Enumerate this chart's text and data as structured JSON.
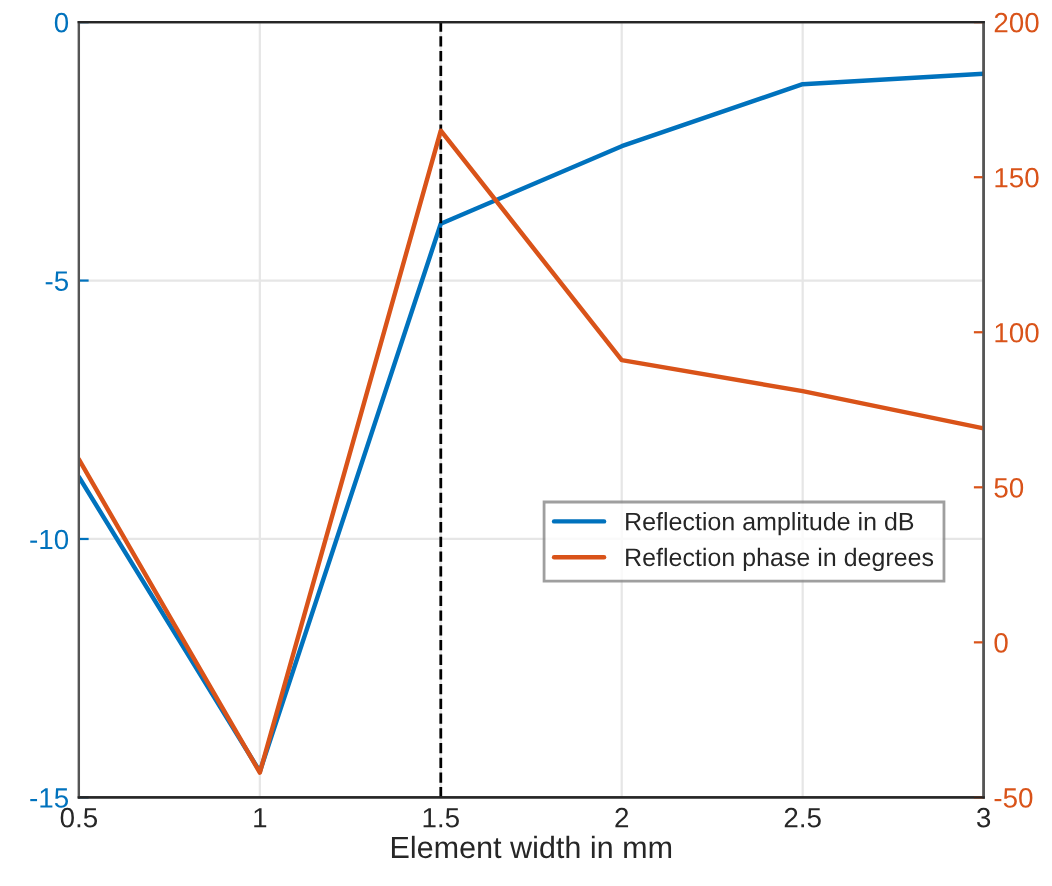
{
  "chart_data": {
    "type": "line",
    "xlabel": "Element width in mm",
    "x": [
      0.5,
      1,
      1.5,
      2,
      2.5,
      3
    ],
    "series": [
      {
        "name": "Reflection amplitude in dB",
        "color": "#0072bd",
        "values": [
          -8.8,
          -14.5,
          -3.9,
          -2.4,
          -1.2,
          -1.0
        ]
      },
      {
        "name": "Reflection phase in degrees",
        "color": "#d95319",
        "axis": "y2",
        "values": [
          59,
          -42,
          165,
          91,
          81,
          69
        ]
      }
    ],
    "xlim": [
      0.5,
      3
    ],
    "xticks": [
      0.5,
      1,
      1.5,
      2,
      2.5,
      3
    ],
    "ylim": [
      -15,
      0
    ],
    "yticks": [
      -15,
      -10,
      -5,
      0
    ],
    "y2lim": [
      -50,
      200
    ],
    "y2ticks": [
      -50,
      0,
      50,
      100,
      150,
      200
    ],
    "ref_lines": [
      {
        "axis": "x",
        "value": 1.5,
        "color": "#000000",
        "line_style": "dashed"
      }
    ],
    "grid": true,
    "legend": "right",
    "marker": "none",
    "line_style": "solid"
  }
}
